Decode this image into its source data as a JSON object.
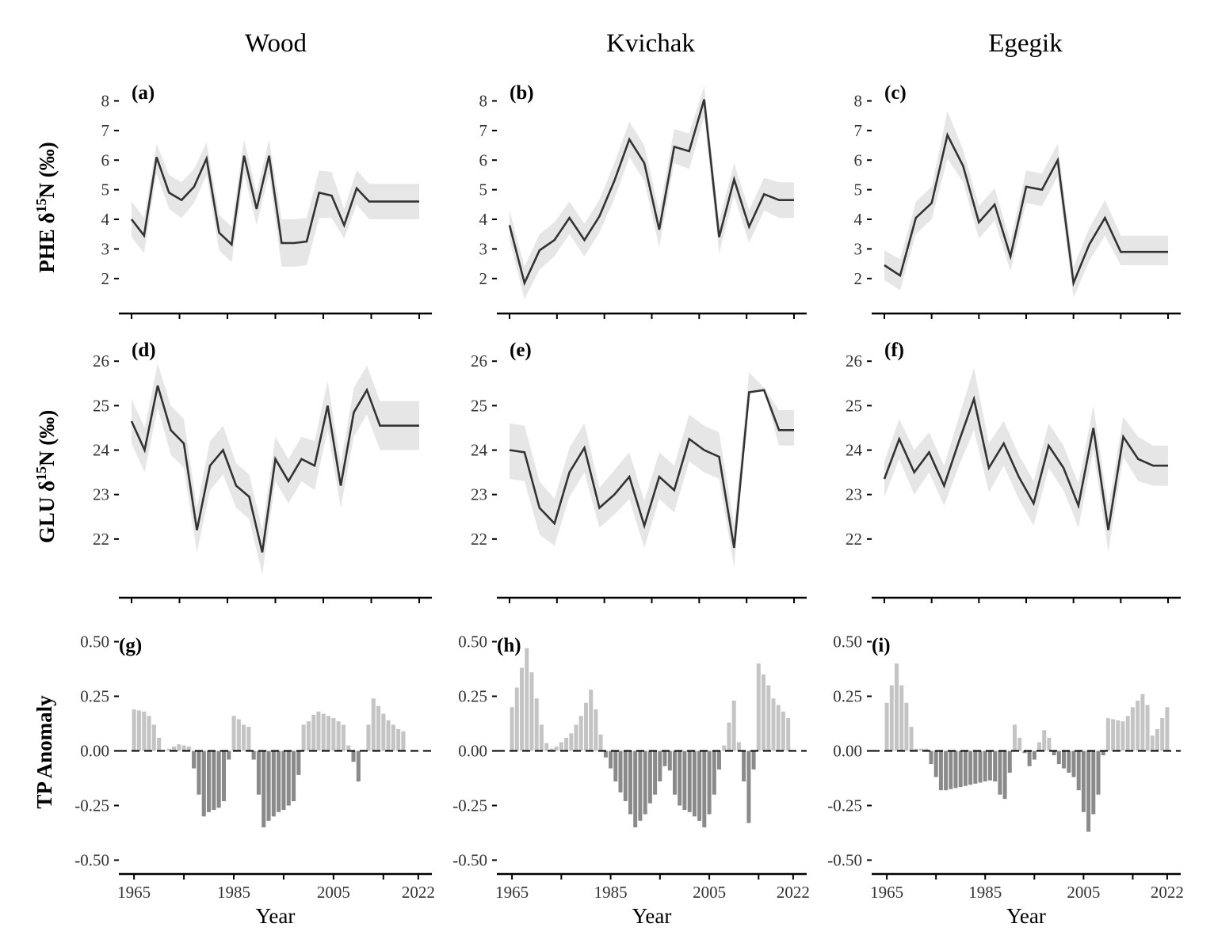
{
  "figure": {
    "column_titles": [
      "Wood",
      "Kvichak",
      "Egegik"
    ],
    "row_labels": [
      "PHE δ15N (‰)",
      "GLU δ15N (‰)",
      "TP Anomaly"
    ],
    "colors": {
      "line": "#333333",
      "ribbon": "#e6e6e6",
      "positive_bar": "#c4c4c4",
      "negative_bar": "#8a8a8a",
      "axis": "#000000"
    }
  },
  "chart_data": [
    {
      "panel": "(a)",
      "river": "Wood",
      "type": "line",
      "ylabel": "PHE δ15N (‰)",
      "ylim": [
        1.3,
        8.2
      ],
      "yticks": [
        2,
        3,
        4,
        5,
        6,
        7,
        8
      ],
      "series": [
        {
          "x": [
            1965,
            1967,
            1969,
            1971,
            1973,
            1975,
            1979,
            1981,
            1983,
            1985,
            1987,
            1989,
            1991,
            1993,
            1995,
            1997,
            1999,
            2001,
            2003,
            2005,
            2007,
            2009,
            2011,
            2013
          ],
          "y": [
            4.0,
            3.45,
            6.1,
            4.9,
            4.65,
            5.1,
            6.05,
            3.55,
            3.15,
            6.15,
            4.35,
            6.15,
            3.2,
            3.2,
            3.25,
            4.9,
            4.8,
            3.8,
            5.05,
            4.6,
            4.6,
            4.6,
            4.6,
            4.6
          ],
          "lower": [
            3.4,
            2.85,
            5.55,
            4.35,
            4.05,
            4.55,
            5.5,
            2.95,
            2.55,
            5.55,
            3.8,
            5.55,
            2.4,
            2.4,
            2.45,
            4.05,
            4.05,
            3.35,
            4.5,
            4.0,
            4.0,
            4.0,
            4.0,
            4.0
          ],
          "upper": [
            4.6,
            4.05,
            6.55,
            5.5,
            5.25,
            5.7,
            6.6,
            4.15,
            3.75,
            6.7,
            4.9,
            6.7,
            4.0,
            4.0,
            4.05,
            5.65,
            5.6,
            4.35,
            5.65,
            5.2,
            5.2,
            5.2,
            5.2,
            5.2
          ]
        }
      ]
    },
    {
      "panel": "(b)",
      "river": "Kvichak",
      "type": "line",
      "ylabel": "PHE δ15N (‰)",
      "ylim": [
        1.3,
        8.2
      ],
      "yticks": [
        2,
        3,
        4,
        5,
        6,
        7,
        8
      ],
      "series": [
        {
          "x": [
            1965,
            1967,
            1969,
            1971,
            1973,
            1975,
            1977,
            1979,
            1983,
            1987,
            1989,
            1991,
            1993,
            1995,
            2001,
            2003,
            2005,
            2007,
            2009,
            2011
          ],
          "y": [
            3.8,
            1.85,
            2.95,
            3.3,
            4.05,
            3.3,
            4.1,
            5.3,
            6.7,
            5.9,
            3.65,
            6.45,
            6.3,
            8.05,
            3.4,
            5.35,
            3.75,
            4.85,
            4.65,
            4.65
          ],
          "lower": [
            3.3,
            1.3,
            2.3,
            2.75,
            3.5,
            2.75,
            3.55,
            4.7,
            6.1,
            5.3,
            3.05,
            5.9,
            5.7,
            7.45,
            2.85,
            4.8,
            3.2,
            4.3,
            4.05,
            4.05
          ],
          "upper": [
            4.3,
            2.4,
            3.5,
            3.9,
            4.6,
            3.85,
            4.65,
            5.9,
            7.3,
            6.5,
            4.25,
            7.05,
            6.9,
            8.5,
            3.95,
            5.9,
            4.3,
            5.4,
            5.25,
            5.25
          ]
        }
      ]
    },
    {
      "panel": "(c)",
      "river": "Egegik",
      "type": "line",
      "ylabel": "PHE δ15N (‰)",
      "ylim": [
        1.3,
        8.2
      ],
      "yticks": [
        2,
        3,
        4,
        5,
        6,
        7,
        8
      ],
      "series": [
        {
          "x": [
            1965,
            1966,
            1968,
            1970,
            1985,
            1987,
            1989,
            1991,
            1993,
            1995,
            1997,
            1999,
            2003,
            2005,
            2007,
            2009,
            2011,
            2013,
            2015
          ],
          "y": [
            2.45,
            2.1,
            4.05,
            4.55,
            6.85,
            5.8,
            3.9,
            4.5,
            2.75,
            5.1,
            5.0,
            6.0,
            1.85,
            3.15,
            4.05,
            2.9,
            2.9,
            2.9,
            2.9
          ],
          "lower": [
            1.95,
            1.6,
            3.5,
            4.0,
            6.05,
            5.25,
            3.35,
            3.95,
            2.25,
            4.55,
            4.45,
            5.45,
            1.35,
            2.6,
            3.45,
            2.45,
            2.45,
            2.45,
            2.45
          ],
          "upper": [
            2.95,
            2.65,
            4.6,
            5.1,
            7.65,
            6.35,
            4.45,
            5.05,
            3.25,
            5.65,
            5.55,
            6.55,
            2.4,
            3.7,
            4.65,
            3.45,
            3.45,
            3.45,
            3.45
          ]
        }
      ]
    },
    {
      "panel": "(d)",
      "river": "Wood",
      "type": "line",
      "ylabel": "GLU δ15N (‰)",
      "ylim": [
        21.0,
        26.2
      ],
      "yticks": [
        22,
        23,
        24,
        25,
        26
      ],
      "series": [
        {
          "x": [
            1965,
            1967,
            1969,
            1971,
            1973,
            1975,
            1977,
            1979,
            1981,
            1983,
            1985,
            1987,
            1989,
            1991,
            1993,
            1995,
            1997,
            1999,
            2001,
            2003,
            2005,
            2007,
            2009
          ],
          "y": [
            24.65,
            24.0,
            25.45,
            24.45,
            24.15,
            22.2,
            23.65,
            24.0,
            23.2,
            22.95,
            21.7,
            23.8,
            23.3,
            23.8,
            23.65,
            25.0,
            23.2,
            24.85,
            25.35,
            24.55,
            24.55,
            24.55,
            24.55
          ],
          "lower": [
            24.15,
            23.5,
            24.95,
            23.9,
            23.6,
            21.7,
            23.1,
            23.45,
            22.7,
            22.45,
            21.2,
            23.3,
            22.8,
            23.3,
            23.1,
            24.45,
            22.7,
            24.3,
            24.8,
            24.0,
            24.0,
            24.0,
            24.0
          ],
          "upper": [
            25.15,
            24.5,
            25.95,
            25.0,
            24.7,
            22.7,
            24.2,
            24.55,
            23.7,
            23.45,
            22.2,
            24.3,
            23.8,
            24.3,
            24.2,
            25.55,
            23.7,
            25.4,
            25.9,
            25.1,
            25.1,
            25.1,
            25.1
          ]
        }
      ]
    },
    {
      "panel": "(e)",
      "river": "Kvichak",
      "type": "line",
      "ylabel": "GLU δ15N (‰)",
      "ylim": [
        21.0,
        26.2
      ],
      "yticks": [
        22,
        23,
        24,
        25,
        26
      ],
      "series": [
        {
          "x": [
            1965,
            1967,
            1969,
            1971,
            1973,
            1975,
            1977,
            1983,
            1987,
            1989,
            1991,
            1993,
            1995,
            1997,
            1999,
            2001,
            2003,
            2005,
            2007,
            2009
          ],
          "y": [
            24.0,
            23.95,
            22.7,
            22.35,
            23.5,
            24.05,
            22.7,
            23.0,
            23.4,
            22.3,
            23.4,
            23.1,
            24.25,
            24.0,
            23.85,
            21.8,
            25.3,
            25.35,
            24.45,
            24.45
          ],
          "lower": [
            23.35,
            23.3,
            22.1,
            21.85,
            22.95,
            23.5,
            22.25,
            22.55,
            22.9,
            21.8,
            22.9,
            22.6,
            23.75,
            23.5,
            23.35,
            21.35,
            25.3,
            25.35,
            24.1,
            24.1
          ],
          "upper": [
            24.6,
            24.55,
            23.3,
            22.9,
            24.05,
            24.6,
            23.15,
            23.55,
            23.95,
            22.85,
            23.95,
            23.65,
            24.8,
            24.55,
            24.4,
            22.3,
            25.75,
            25.4,
            24.9,
            24.9
          ]
        }
      ]
    },
    {
      "panel": "(f)",
      "river": "Egegik",
      "type": "line",
      "ylabel": "GLU δ15N (‰)",
      "ylim": [
        21.0,
        26.2
      ],
      "yticks": [
        22,
        23,
        24,
        25,
        26
      ],
      "series": [
        {
          "x": [
            1965,
            1966,
            1968,
            1970,
            1972,
            1976,
            1985,
            1987,
            1989,
            1991,
            1993,
            1995,
            1997,
            1999,
            2001,
            2003,
            2005,
            2007,
            2009,
            2011
          ],
          "y": [
            23.35,
            24.25,
            23.5,
            23.95,
            23.2,
            24.2,
            25.15,
            23.6,
            24.15,
            23.4,
            22.8,
            24.1,
            23.6,
            22.75,
            24.5,
            22.2,
            24.3,
            23.8,
            23.65,
            23.65
          ],
          "lower": [
            22.95,
            23.8,
            23.0,
            23.5,
            22.75,
            23.65,
            24.45,
            23.05,
            23.65,
            22.9,
            22.3,
            23.6,
            23.1,
            22.25,
            24.0,
            21.7,
            23.85,
            23.3,
            23.2,
            23.2
          ],
          "upper": [
            23.75,
            24.7,
            24.0,
            24.4,
            23.65,
            24.75,
            25.85,
            24.15,
            24.65,
            23.9,
            23.3,
            24.6,
            24.1,
            23.25,
            25.0,
            22.7,
            24.75,
            24.3,
            24.1,
            24.1
          ]
        }
      ]
    },
    {
      "panel": "(g)",
      "river": "Wood",
      "type": "bar",
      "ylabel": "TP Anomaly",
      "xlabel": "Year",
      "ylim": [
        -0.52,
        0.52
      ],
      "yticks": [
        -0.5,
        -0.25,
        0.0,
        0.25,
        0.5
      ],
      "ytick_labels": [
        "-0.50",
        "-0.25",
        "0.00",
        "0.25",
        "0.50"
      ],
      "x_start": 1965,
      "x_end": 2022,
      "xticks": [
        1965,
        1985,
        2005,
        2022
      ],
      "values": [
        0.19,
        0.185,
        0.18,
        0.16,
        0.12,
        0.06,
        0.005,
        0.01,
        0.02,
        0.03,
        0.025,
        0.02,
        -0.08,
        -0.2,
        -0.3,
        -0.28,
        -0.27,
        -0.26,
        -0.23,
        -0.04,
        0.16,
        0.145,
        0.12,
        0.11,
        -0.04,
        -0.2,
        -0.35,
        -0.32,
        -0.3,
        -0.28,
        -0.27,
        -0.25,
        -0.23,
        -0.11,
        0.12,
        0.135,
        0.165,
        0.18,
        0.17,
        0.16,
        0.15,
        0.135,
        0.12,
        0.025,
        -0.05,
        -0.14,
        0.005,
        0.12,
        0.24,
        0.205,
        0.17,
        0.14,
        0.12,
        0.1,
        0.09,
        0.0,
        0.0,
        0.0
      ]
    },
    {
      "panel": "(h)",
      "river": "Kvichak",
      "type": "bar",
      "ylabel": "TP Anomaly",
      "xlabel": "Year",
      "ylim": [
        -0.52,
        0.52
      ],
      "yticks": [
        -0.5,
        -0.25,
        0.0,
        0.25,
        0.5
      ],
      "ytick_labels": [
        "-0.50",
        "-0.25",
        "0.00",
        "0.25",
        "0.50"
      ],
      "x_start": 1965,
      "x_end": 2022,
      "xticks": [
        1965,
        1985,
        2005,
        2022
      ],
      "values": [
        0.2,
        0.29,
        0.38,
        0.47,
        0.36,
        0.24,
        0.12,
        0.035,
        0.01,
        0.02,
        0.04,
        0.06,
        0.08,
        0.12,
        0.16,
        0.22,
        0.28,
        0.19,
        0.075,
        -0.03,
        -0.08,
        -0.14,
        -0.19,
        -0.23,
        -0.29,
        -0.35,
        -0.32,
        -0.29,
        -0.24,
        -0.2,
        -0.14,
        -0.07,
        -0.09,
        -0.2,
        -0.25,
        -0.27,
        -0.28,
        -0.3,
        -0.32,
        -0.35,
        -0.29,
        -0.2,
        -0.085,
        0.025,
        0.13,
        0.23,
        0.04,
        -0.14,
        -0.33,
        -0.085,
        0.4,
        0.35,
        0.3,
        0.24,
        0.21,
        0.18,
        0.15,
        0.0
      ]
    },
    {
      "panel": "(i)",
      "river": "Egegik",
      "type": "bar",
      "ylabel": "TP Anomaly",
      "xlabel": "Year",
      "ylim": [
        -0.52,
        0.52
      ],
      "yticks": [
        -0.5,
        -0.25,
        0.0,
        0.25,
        0.5
      ],
      "ytick_labels": [
        "-0.50",
        "-0.25",
        "0.00",
        "0.25",
        "0.50"
      ],
      "x_start": 1965,
      "x_end": 2022,
      "xticks": [
        1965,
        1985,
        2005,
        2022
      ],
      "values": [
        0.22,
        0.3,
        0.4,
        0.3,
        0.22,
        0.11,
        0.01,
        0.01,
        0.01,
        -0.06,
        -0.12,
        -0.18,
        -0.18,
        -0.175,
        -0.17,
        -0.165,
        -0.16,
        -0.155,
        -0.15,
        -0.145,
        -0.14,
        -0.135,
        -0.14,
        -0.2,
        -0.22,
        -0.1,
        0.12,
        0.06,
        -0.01,
        -0.07,
        -0.04,
        0.04,
        0.095,
        0.06,
        -0.02,
        -0.06,
        -0.08,
        -0.1,
        -0.12,
        -0.18,
        -0.28,
        -0.37,
        -0.29,
        -0.2,
        -0.02,
        0.15,
        0.145,
        0.14,
        0.135,
        0.16,
        0.2,
        0.23,
        0.26,
        0.21,
        0.07,
        0.1,
        0.15,
        0.2
      ]
    }
  ]
}
